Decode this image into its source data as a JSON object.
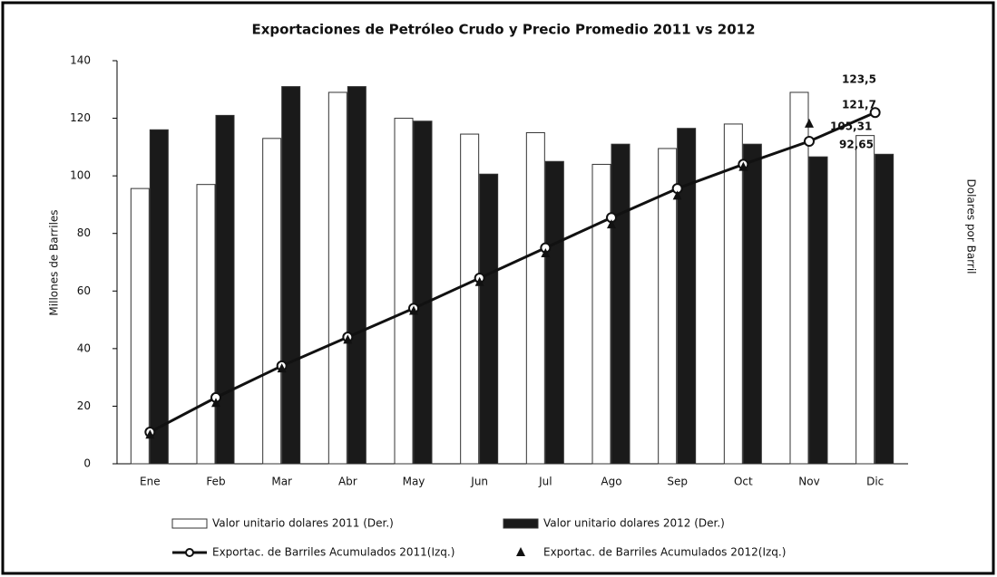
{
  "chart_data": {
    "type": "bar-line",
    "title": "Exportaciones de Petróleo Crudo y Precio Promedio 2011 vs 2012",
    "ylabel": "Millones de Barriles",
    "y2label": "Dolares por Barril",
    "categories": [
      "Ene",
      "Feb",
      "Mar",
      "Abr",
      "May",
      "Jun",
      "Jul",
      "Ago",
      "Sep",
      "Oct",
      "Nov",
      "Dic"
    ],
    "ylim": [
      0,
      140
    ],
    "yticks": [
      0,
      20,
      40,
      60,
      80,
      100,
      120,
      140
    ],
    "y2lim": [
      0,
      140
    ],
    "series": [
      {
        "name": "Valor unitario dolares 2011 (Der.)",
        "kind": "bar",
        "axis": "y2",
        "color": "#ffffff",
        "values": [
          95.6,
          97,
          113,
          129,
          120,
          114.5,
          115,
          104,
          109.5,
          118,
          129,
          114
        ]
      },
      {
        "name": "Valor unitario dolares 2012 (Der.)",
        "kind": "bar",
        "axis": "y2",
        "color": "#1a1a1a",
        "values": [
          116,
          121,
          131,
          131,
          119,
          100.6,
          105,
          111,
          116.5,
          111,
          106.6,
          107.5
        ]
      },
      {
        "name": "Exportac. de Barriles Acumulados 2011(Izq.)",
        "kind": "line",
        "color": "#111111",
        "values": [
          11,
          23,
          34,
          44,
          54,
          64.5,
          75,
          85.5,
          95.6,
          104,
          112,
          122
        ]
      },
      {
        "name": "Exportac. de Barriles Acumulados 2012(Izq.)",
        "kind": "marker",
        "color": "#111111",
        "values": [
          10,
          21,
          33,
          43,
          53,
          63,
          73,
          83,
          93,
          103,
          118,
          null
        ]
      }
    ],
    "annotations": [
      "123,5",
      "121,7",
      "105,31",
      "92,65"
    ]
  }
}
